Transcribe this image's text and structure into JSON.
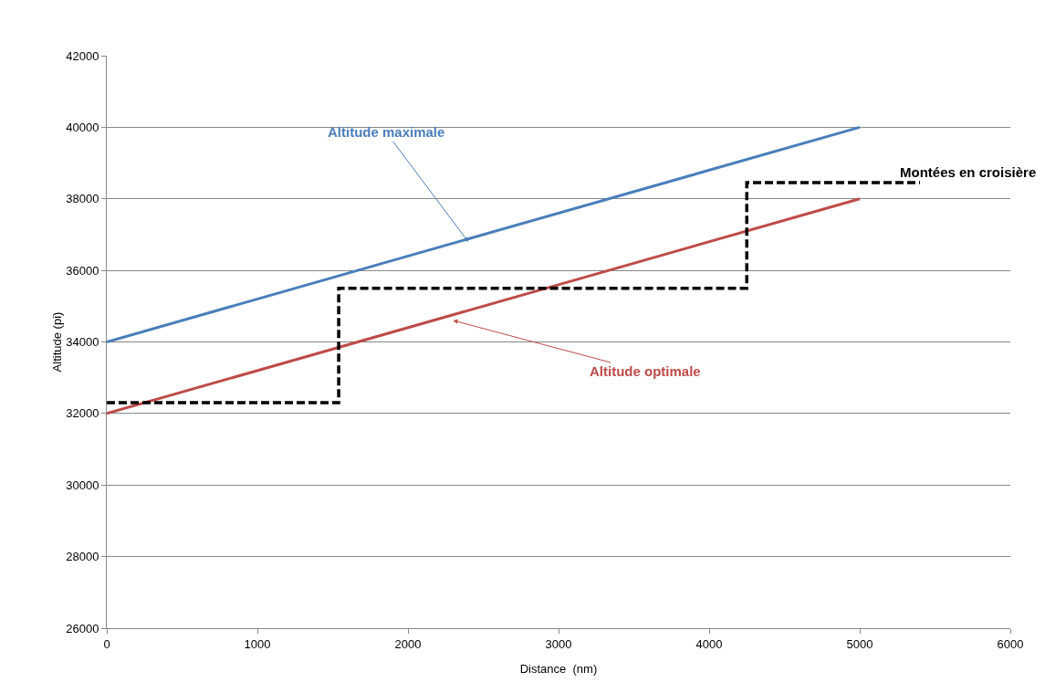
{
  "chart_data": {
    "type": "line",
    "xlabel": "Distance  (nm)",
    "ylabel": "Altitude (pi)",
    "xlim": [
      0,
      6000
    ],
    "xticks": [
      0,
      1000,
      2000,
      3000,
      4000,
      5000,
      6000
    ],
    "ylim": [
      26000,
      42000
    ],
    "yticks": [
      26000,
      28000,
      30000,
      32000,
      34000,
      36000,
      38000,
      40000,
      42000
    ],
    "grid": "y",
    "marker": "none",
    "series": [
      {
        "color": "#4a7ebb",
        "x": [
          0,
          5000
        ],
        "values": [
          34000,
          40000
        ],
        "line_style": "solid"
      },
      {
        "color": "#be4b48",
        "x": [
          0,
          5000
        ],
        "values": [
          32000,
          38000
        ],
        "line_style": "solid"
      },
      {
        "type": "step",
        "color": "#000000",
        "x": [
          0,
          1540,
          4250,
          5400
        ],
        "values": [
          32300,
          35500,
          38450,
          38450
        ],
        "line_style": "dashed"
      }
    ],
    "annotations": [
      {
        "text": "Altitude maximale",
        "x": 2400,
        "y": 36800
      },
      {
        "text": "Altitude optimale",
        "x": 2300,
        "y": 34600
      },
      "Montées en croisière"
    ]
  }
}
